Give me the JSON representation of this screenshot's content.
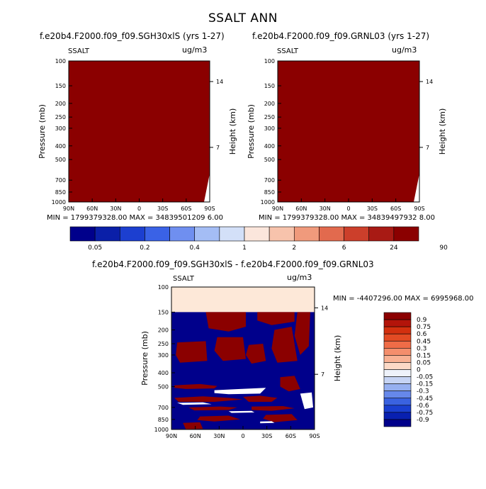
{
  "title": "SSALT ANN",
  "colors": {
    "dark_red": "#8b0000",
    "navy": "#00008b",
    "light_peach": "#fde8d8",
    "white": "#ffffff"
  },
  "chart_data": [
    {
      "type": "heatmap",
      "title": "f.e20b4.F2000.f09_f09.SGH30xlS (yrs 1-27)",
      "left_label": "SSALT",
      "right_label": "ug/m3",
      "xlabel": "",
      "ylabel": "Pressure (mb)",
      "ylabel_right": "Height (km)",
      "x_ticks": [
        "90N",
        "60N",
        "30N",
        "0",
        "30S",
        "60S",
        "90S"
      ],
      "y_ticks": [
        "100",
        "150",
        "200",
        "250",
        "300",
        "400",
        "500",
        "700",
        "850",
        "1000"
      ],
      "y_ticks_right": [
        "14",
        "7"
      ],
      "ylim": [
        1000,
        100
      ],
      "stats": "MIN = 1799379328.00   MAX = 34839501209 6.00",
      "stats_text": "MIN = 1799379328.00   MAX = 34839501209 6.00"
    },
    {
      "type": "heatmap",
      "title": "f.e20b4.F2000.f09_f09.GRNL03 (yrs 1-27)",
      "left_label": "SSALT",
      "right_label": "ug/m3",
      "xlabel": "",
      "ylabel": "Pressure (mb)",
      "ylabel_right": "Height (km)",
      "x_ticks": [
        "90N",
        "60N",
        "30N",
        "0",
        "30S",
        "60S",
        "90S"
      ],
      "y_ticks": [
        "100",
        "150",
        "200",
        "250",
        "300",
        "400",
        "500",
        "700",
        "850",
        "1000"
      ],
      "y_ticks_right": [
        "14",
        "7"
      ],
      "ylim": [
        1000,
        100
      ],
      "stats_text": "MIN = 1799379328.00   MAX = 34839497932 8.00"
    },
    {
      "type": "heatmap",
      "title": "f.e20b4.F2000.f09_f09.SGH30xlS - f.e20b4.F2000.f09_f09.GRNL03",
      "left_label": "SSALT",
      "right_label": "ug/m3",
      "xlabel": "",
      "ylabel": "Pressure (mb)",
      "ylabel_right": "Height (km)",
      "x_ticks": [
        "90N",
        "60N",
        "30N",
        "0",
        "30S",
        "60S",
        "90S"
      ],
      "y_ticks": [
        "100",
        "150",
        "200",
        "250",
        "300",
        "400",
        "500",
        "700",
        "850",
        "1000"
      ],
      "y_ticks_right": [
        "14",
        "7"
      ],
      "ylim": [
        1000,
        100
      ],
      "stats_text": "MIN = -4407296.00   MAX = 6995968.00"
    }
  ],
  "top_colorbar": {
    "labels": [
      "0.05",
      "0.2",
      "0.4",
      "1",
      "2",
      "6",
      "24",
      "90"
    ],
    "colors": [
      "#00008b",
      "#0a1fa8",
      "#1c3fd0",
      "#3a62e6",
      "#6f8ff0",
      "#a4bdf5",
      "#d3e0f8",
      "#fbe6dc",
      "#f7c3ac",
      "#f09a7c",
      "#e26a4e",
      "#cc3f2b",
      "#a81a14",
      "#8b0000"
    ]
  },
  "diff_colorbar": {
    "labels": [
      "0.9",
      "0.75",
      "0.6",
      "0.45",
      "0.3",
      "0.15",
      "0.05",
      "0",
      "-0.05",
      "-0.15",
      "-0.3",
      "-0.45",
      "-0.6",
      "-0.75",
      "-0.9"
    ],
    "colors": [
      "#8b0000",
      "#b3140a",
      "#d3300f",
      "#e34b24",
      "#ef6c47",
      "#f48e6c",
      "#f8b193",
      "#fcd9c6",
      "#eef2fa",
      "#c6d4f4",
      "#96b0f0",
      "#6688ea",
      "#3a62e0",
      "#1a3fd0",
      "#0820b0",
      "#00008b"
    ]
  }
}
